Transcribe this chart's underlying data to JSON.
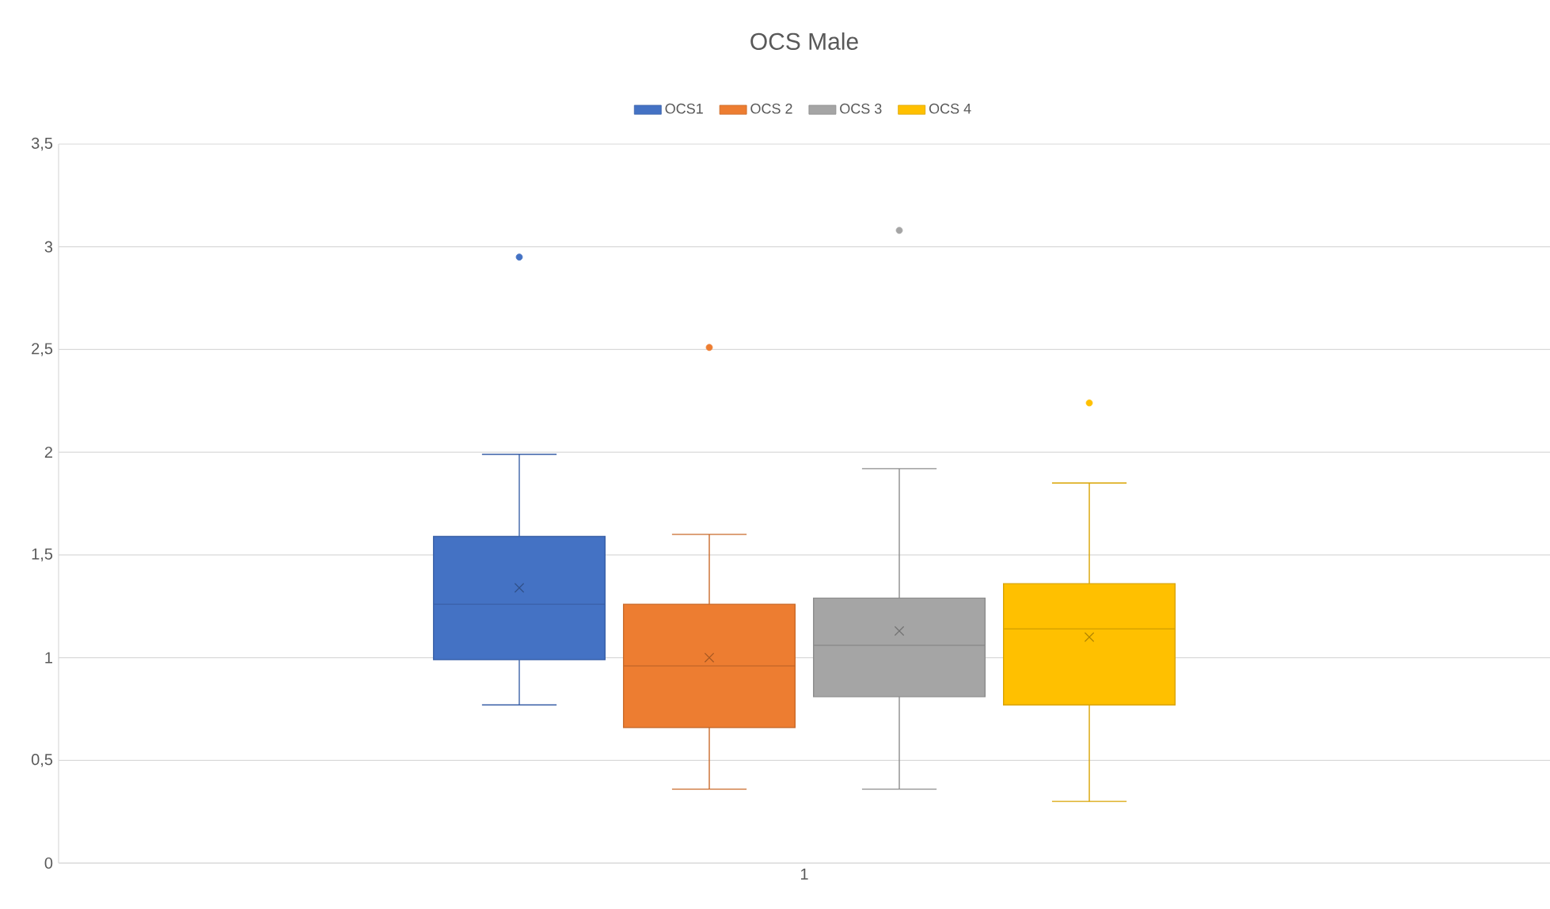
{
  "chart_data": {
    "type": "box",
    "title": "OCS Male",
    "categories": [
      "1"
    ],
    "series": [
      {
        "name": "OCS1",
        "color": "#4472c4",
        "boxes": [
          {
            "low": 0.77,
            "q1": 0.99,
            "median": 1.26,
            "q3": 1.59,
            "high": 1.99,
            "mean": 1.34,
            "outliers": [
              2.95
            ]
          }
        ]
      },
      {
        "name": "OCS 2",
        "color": "#ed7d31",
        "boxes": [
          {
            "low": 0.36,
            "q1": 0.66,
            "median": 0.96,
            "q3": 1.26,
            "high": 1.6,
            "mean": 1.0,
            "outliers": [
              2.51
            ]
          }
        ]
      },
      {
        "name": "OCS 3",
        "color": "#a5a5a5",
        "boxes": [
          {
            "low": 0.36,
            "q1": 0.81,
            "median": 1.06,
            "q3": 1.29,
            "high": 1.92,
            "mean": 1.13,
            "outliers": [
              3.08
            ]
          }
        ]
      },
      {
        "name": "OCS 4",
        "color": "#ffc000",
        "boxes": [
          {
            "low": 0.3,
            "q1": 0.77,
            "median": 1.14,
            "q3": 1.36,
            "high": 1.85,
            "mean": 1.1,
            "outliers": [
              2.24
            ]
          }
        ]
      }
    ],
    "ylim": [
      0,
      3.5
    ],
    "yticks": [
      0,
      {
        "value": 0.5,
        "label": "0,5"
      },
      1,
      {
        "value": 1.5,
        "label": "1,5"
      },
      2,
      {
        "value": 2.5,
        "label": "2,5"
      },
      3,
      {
        "value": 3.5,
        "label": "3,5"
      }
    ],
    "grid": "y",
    "legend": "top"
  }
}
